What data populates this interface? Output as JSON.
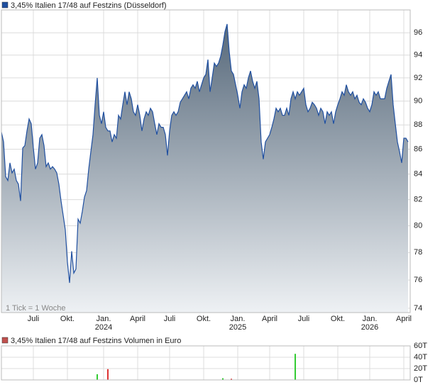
{
  "chart_data": [
    {
      "type": "area",
      "name": "3,45% Italien 17/48 auf Festzins (Düsseldorf)",
      "color": "#1f4fa0",
      "area_colors": [
        "#56687a",
        "#eef1f4"
      ],
      "annotation": "1 Tick = 1 Woche",
      "log": true,
      "grid": true,
      "xlim": [
        0,
        192
      ],
      "ylim": [
        73.7,
        98.1
      ],
      "yticks": [
        74,
        76,
        78,
        80,
        82,
        84,
        86,
        88,
        90,
        92,
        94,
        96
      ],
      "xticks": [
        {
          "value": 15,
          "label": "Juli"
        },
        {
          "value": 31,
          "label": "Okt."
        },
        {
          "value": 48,
          "label": "Jan.",
          "sublabel": "2024"
        },
        {
          "value": 64,
          "label": "April"
        },
        {
          "value": 79,
          "label": "Juli"
        },
        {
          "value": 95,
          "label": "Okt."
        },
        {
          "value": 111,
          "label": "Jan.",
          "sublabel": "2025"
        },
        {
          "value": 126,
          "label": "April"
        },
        {
          "value": 142,
          "label": "Juli"
        },
        {
          "value": 158,
          "label": "Okt."
        },
        {
          "value": 173,
          "label": "Jan.",
          "sublabel": "2026"
        },
        {
          "value": 189,
          "label": "April"
        }
      ],
      "values": [
        87.4,
        86.6,
        83.8,
        83.5,
        84.9,
        84.1,
        84.4,
        83.5,
        83.2,
        81.9,
        86.1,
        86.3,
        87.5,
        88.5,
        88.1,
        86.1,
        84.4,
        84.9,
        86.9,
        87.2,
        86.3,
        84.6,
        84.9,
        84.4,
        84.6,
        84.4,
        84.1,
        83.2,
        81.9,
        80.8,
        79.7,
        77.3,
        75.8,
        78.1,
        76.5,
        76.8,
        80.5,
        80.2,
        81.1,
        82.2,
        82.7,
        84.4,
        85.8,
        87.2,
        89.7,
        92.0,
        88.8,
        88.1,
        89.1,
        87.8,
        87.5,
        87.5,
        86.6,
        87.2,
        86.9,
        88.8,
        88.5,
        89.7,
        90.8,
        89.7,
        90.8,
        90.2,
        89.1,
        88.8,
        89.7,
        88.8,
        87.5,
        88.5,
        89.1,
        88.8,
        89.4,
        89.1,
        88.1,
        87.2,
        88.1,
        87.8,
        87.8,
        87.2,
        85.5,
        87.5,
        88.8,
        89.1,
        88.8,
        89.1,
        89.9,
        90.2,
        90.5,
        90.8,
        90.2,
        91.1,
        91.4,
        91.1,
        91.7,
        90.8,
        91.4,
        92.0,
        92.3,
        93.6,
        90.8,
        92.0,
        93.3,
        93.0,
        93.3,
        93.9,
        94.9,
        96.1,
        96.8,
        94.3,
        92.6,
        92.3,
        91.4,
        90.5,
        89.4,
        90.8,
        91.4,
        91.1,
        92.0,
        92.6,
        91.7,
        91.1,
        91.7,
        90.2,
        86.6,
        85.2,
        86.6,
        86.9,
        87.2,
        87.8,
        88.5,
        89.4,
        89.1,
        89.4,
        88.8,
        88.8,
        89.4,
        88.8,
        90.2,
        90.8,
        90.2,
        90.8,
        90.5,
        90.8,
        91.1,
        89.7,
        89.1,
        89.4,
        89.9,
        89.7,
        89.4,
        88.8,
        89.4,
        89.1,
        88.1,
        89.1,
        88.8,
        89.1,
        88.1,
        89.1,
        89.7,
        90.2,
        90.8,
        90.5,
        91.4,
        90.8,
        90.5,
        90.8,
        90.2,
        90.5,
        89.9,
        89.7,
        90.2,
        89.9,
        89.4,
        89.1,
        89.7,
        90.8,
        90.5,
        90.8,
        90.2,
        90.2,
        90.2,
        91.1,
        91.7,
        92.3,
        89.7,
        88.1,
        86.6,
        85.8,
        84.9,
        86.9,
        86.9,
        86.6
      ]
    },
    {
      "type": "bar",
      "name": "3,45% Italien 17/48 auf Festzins Volumen in Euro",
      "legend_color": "#c0504d",
      "grid": true,
      "xlim": [
        0,
        192
      ],
      "ylim": [
        0,
        60
      ],
      "yticks": [
        {
          "value": 0,
          "label": "0T"
        },
        {
          "value": 20,
          "label": "20T"
        },
        {
          "value": 40,
          "label": "40T"
        },
        {
          "value": 60,
          "label": "60T"
        }
      ],
      "x": [
        45,
        50,
        104,
        108,
        138
      ],
      "values": [
        10,
        19,
        3,
        2,
        46
      ],
      "colors": [
        "#33cc33",
        "#dd3333",
        "#33cc33",
        "#dd3333",
        "#33cc33"
      ]
    }
  ]
}
